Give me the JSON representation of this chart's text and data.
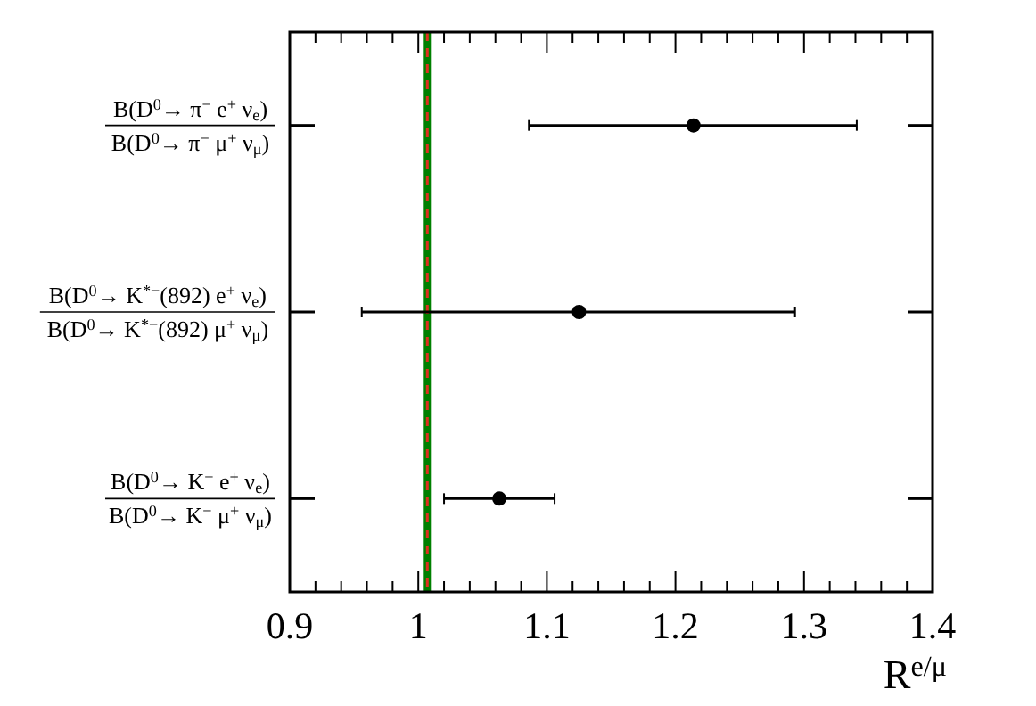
{
  "chart_data": {
    "type": "scatter",
    "orientation": "horizontal",
    "xlabel": "R$^{e/μ}$",
    "categories": [
      "B(D$^{0}$→ π$^{−}$ e$^{+}$ ν$_{e}$)\nB(D$^{0}$→ π$^{−}$ μ$^{+}$ ν$_{μ}$)",
      "B(D$^{0}$→ K$^{*−}$(892) e$^{+}$ ν$_{e}$)\nB(D$^{0}$→ K$^{*−}$(892) μ$^{+}$ ν$_{μ}$)",
      "B(D$^{0}$→ K$^{−}$ e$^{+}$ ν$_{e}$)\nB(D$^{0}$→ K$^{−}$ μ$^{+}$ ν$_{μ}$)"
    ],
    "values": [
      1.214,
      1.125,
      1.063
    ],
    "errors": [
      [
        1.086,
        1.341
      ],
      [
        0.956,
        1.293
      ],
      [
        1.02,
        1.106
      ]
    ],
    "color": "#000000",
    "marker": "circle",
    "xlim": [
      0.9,
      1.4
    ],
    "xticks": [
      0.9,
      {
        "value": 0.92,
        "label": null
      },
      {
        "value": 0.94,
        "label": null
      },
      {
        "value": 0.96,
        "label": null
      },
      {
        "value": 0.98,
        "label": null
      },
      1,
      {
        "value": 1.02,
        "label": null
      },
      {
        "value": 1.04,
        "label": null
      },
      {
        "value": 1.06,
        "label": null
      },
      {
        "value": 1.08,
        "label": null
      },
      1.1,
      {
        "value": 1.12,
        "label": null
      },
      {
        "value": 1.14,
        "label": null
      },
      {
        "value": 1.16,
        "label": null
      },
      {
        "value": 1.18,
        "label": null
      },
      1.2,
      {
        "value": 1.22,
        "label": null
      },
      {
        "value": 1.24,
        "label": null
      },
      {
        "value": 1.26,
        "label": null
      },
      {
        "value": 1.28,
        "label": null
      },
      1.3,
      {
        "value": 1.32,
        "label": null
      },
      {
        "value": 1.34,
        "label": null
      },
      {
        "value": 1.36,
        "label": null
      },
      {
        "value": 1.38,
        "label": null
      },
      1.4
    ],
    "ref_lines": [
      {
        "axis": "x",
        "value": 1.007,
        "color": "#008000",
        "line_style": "solid"
      },
      {
        "axis": "x",
        "value": 1.007,
        "color": "#e03020",
        "line_style": "dashed"
      }
    ],
    "grid": false
  }
}
